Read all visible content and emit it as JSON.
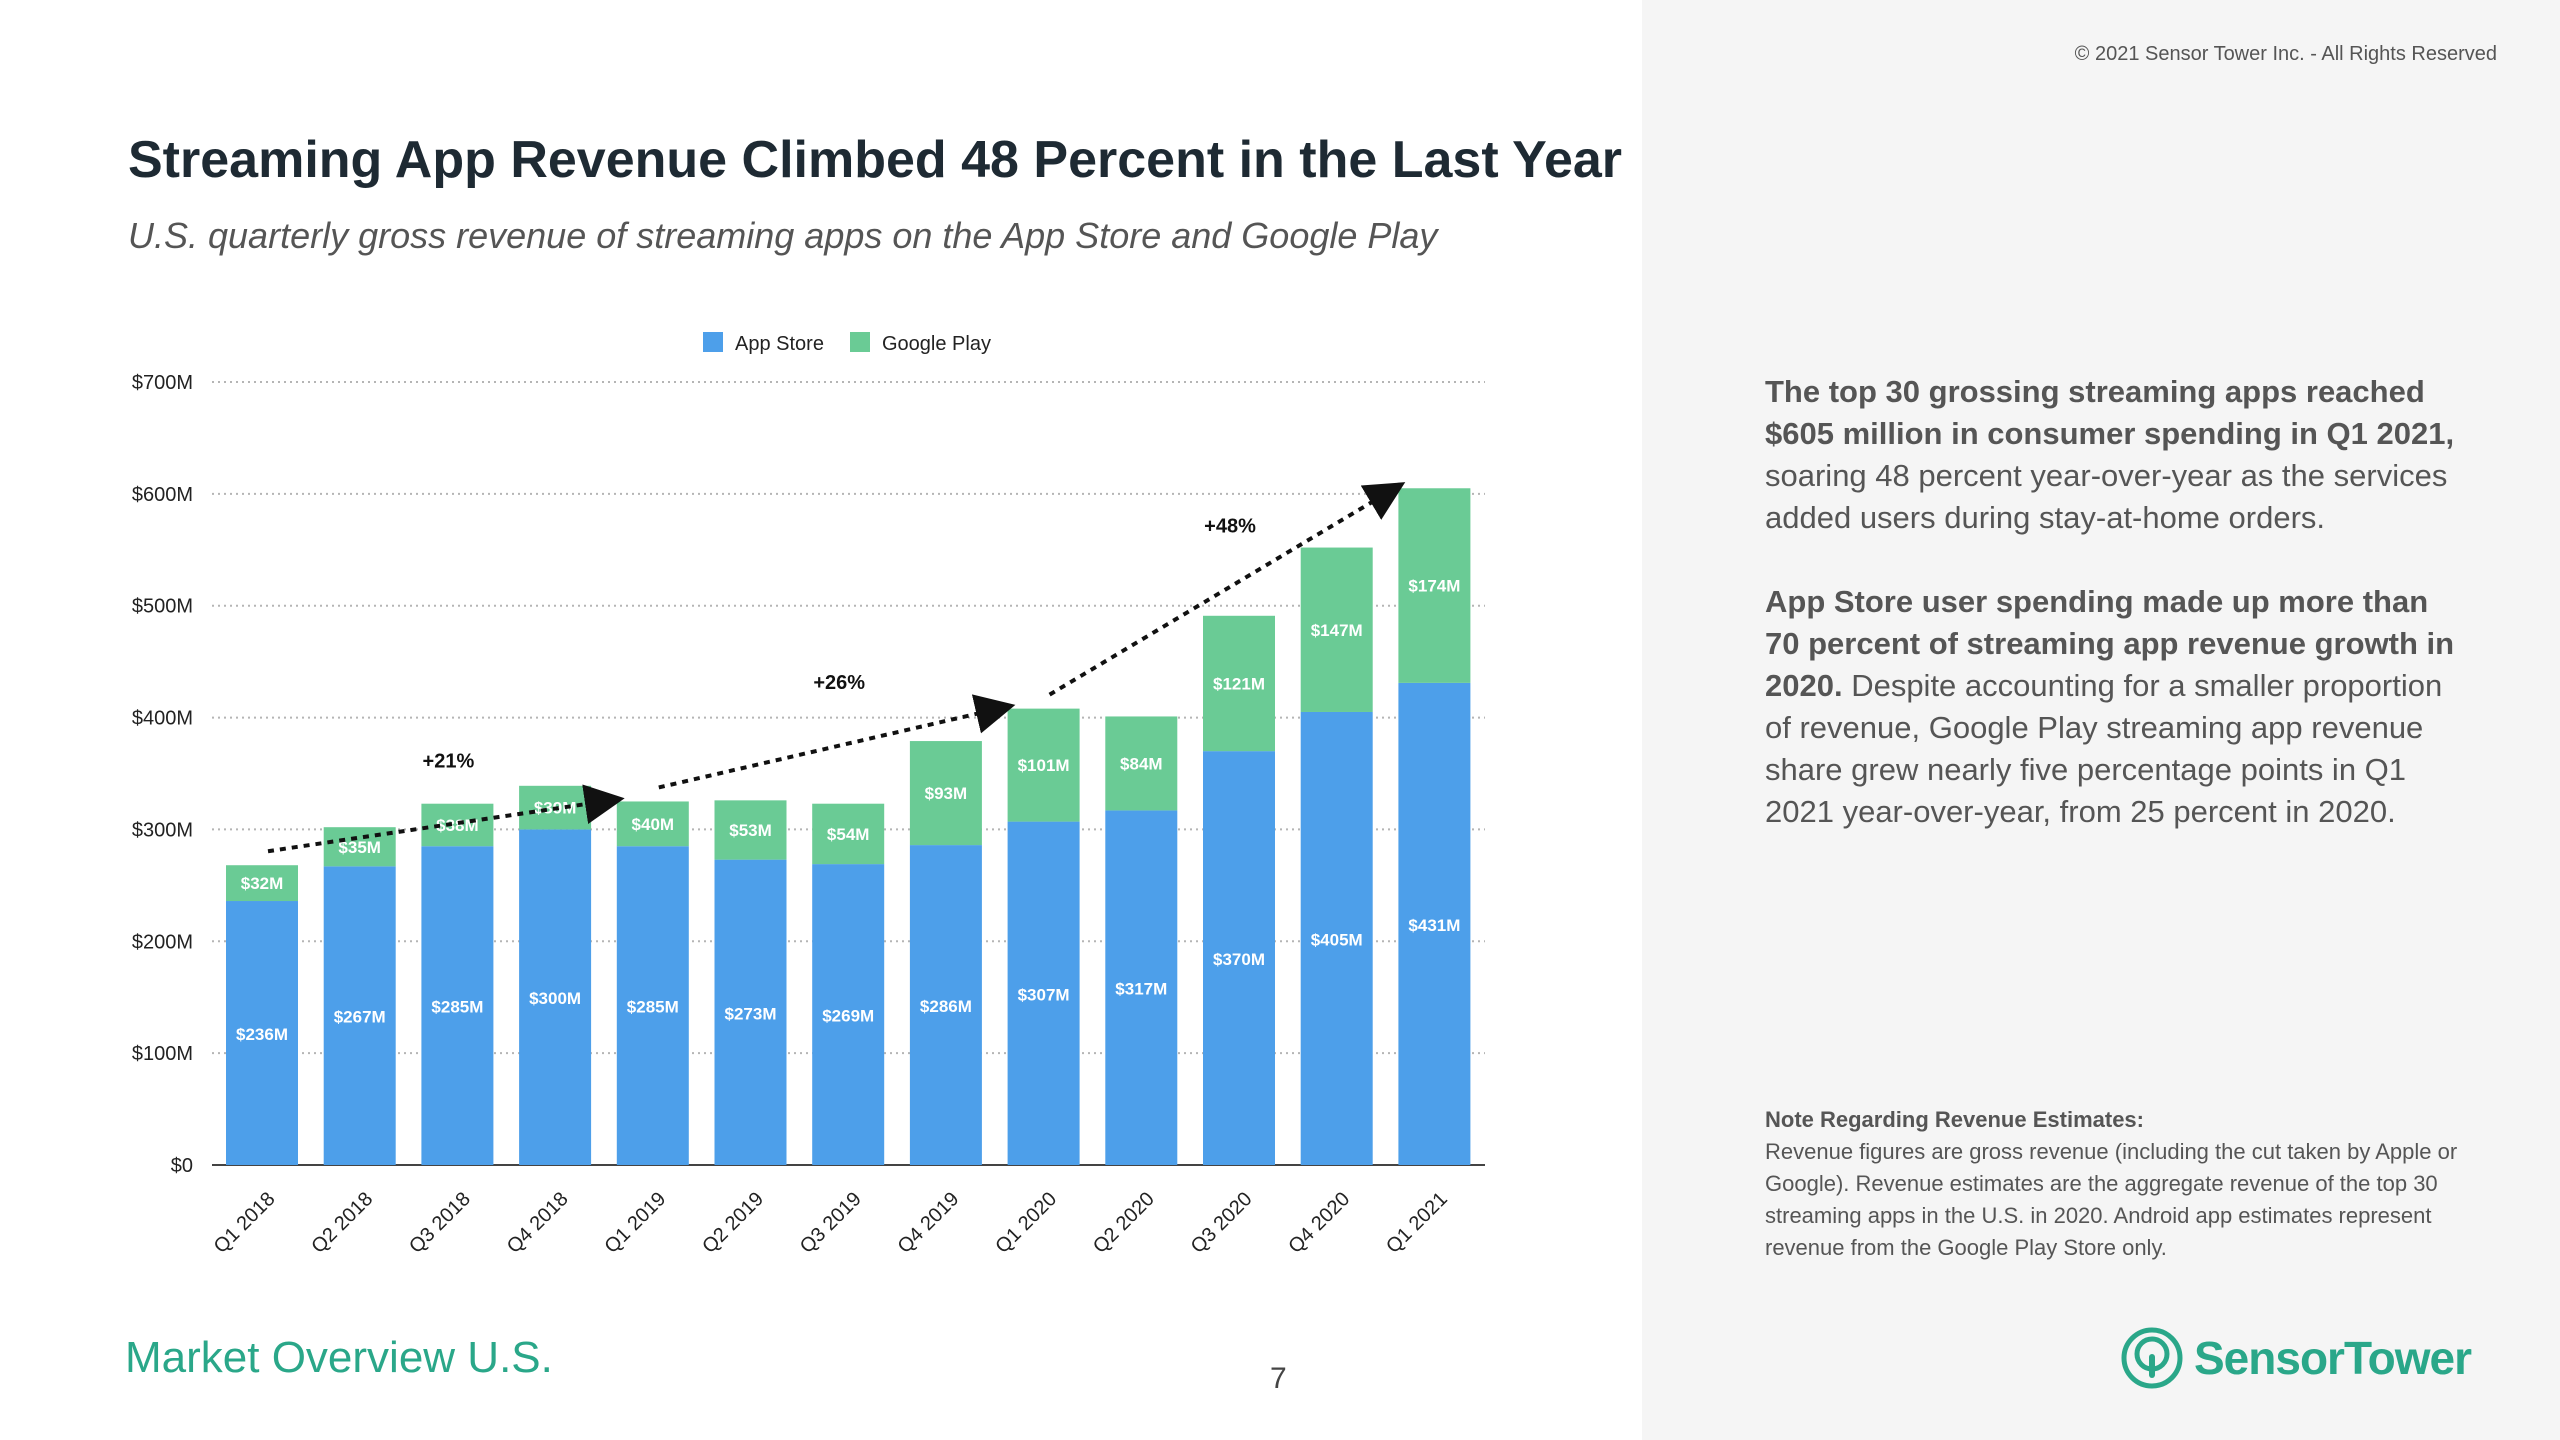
{
  "copyright": "© 2021 Sensor Tower Inc. - All Rights Reserved",
  "title": "Streaming App Revenue Climbed 48 Percent in the Last Year",
  "subtitle": "U.S. quarterly gross revenue of streaming apps on the App Store and Google Play",
  "side_text": {
    "para1_bold": "The top 30 grossing streaming apps reached $605 million in consumer spending in Q1 2021,",
    "para1_rest": " soaring 48 percent year-over-year as the services added users during stay-at-home orders.",
    "para2_bold": "App Store user spending made up more than 70 percent of streaming app revenue growth in 2020.",
    "para2_rest": " Despite accounting for a smaller proportion of revenue, Google Play streaming app revenue share grew nearly five percentage points in Q1 2021 year-over-year, from 25 percent in 2020."
  },
  "note": {
    "title": "Note Regarding Revenue Estimates:",
    "body": "Revenue figures are gross revenue (including the cut taken by Apple or Google). Revenue estimates are the aggregate revenue of the top 30 streaming apps in the U.S. in 2020. Android app estimates represent revenue from the Google Play Store only."
  },
  "footer": {
    "section": "Market Overview U.S.",
    "page_number": "7",
    "brand": "SensorTower"
  },
  "colors": {
    "app_store": "#4d9fea",
    "google_play": "#6acb95",
    "brand": "#2aa789"
  },
  "chart_data": {
    "type": "bar",
    "stacked": true,
    "categories": [
      "Q1 2018",
      "Q2 2018",
      "Q3 2018",
      "Q4 2018",
      "Q1 2019",
      "Q2 2019",
      "Q3 2019",
      "Q4 2019",
      "Q1 2020",
      "Q2 2020",
      "Q3 2020",
      "Q4 2020",
      "Q1 2021"
    ],
    "series": [
      {
        "name": "App Store",
        "color": "#4d9fea",
        "values": [
          236,
          267,
          285,
          300,
          285,
          273,
          269,
          286,
          307,
          317,
          370,
          405,
          431
        ],
        "labels": [
          "$236M",
          "$267M",
          "$285M",
          "$300M",
          "$285M",
          "$273M",
          "$269M",
          "$286M",
          "$307M",
          "$317M",
          "$370M",
          "$405M",
          "$431M"
        ]
      },
      {
        "name": "Google Play",
        "color": "#6acb95",
        "values": [
          32,
          35,
          38,
          39,
          40,
          53,
          54,
          93,
          101,
          84,
          121,
          147,
          174
        ],
        "labels": [
          "$32M",
          "$35M",
          "$38M",
          "$39M",
          "$40M",
          "$53M",
          "$54M",
          "$93M",
          "$101M",
          "$84M",
          "$121M",
          "$147M",
          "$174M"
        ]
      }
    ],
    "yticks": [
      0,
      100,
      200,
      300,
      400,
      500,
      600,
      700
    ],
    "ytick_labels": [
      "$0",
      "$100M",
      "$200M",
      "$300M",
      "$400M",
      "$500M",
      "$600M",
      "$700M"
    ],
    "ylim": [
      0,
      700
    ],
    "grid": true,
    "legend": "top-center",
    "growth_annotations": [
      {
        "label": "+21%",
        "from": "Q1 2018",
        "to": "Q1 2019"
      },
      {
        "label": "+26%",
        "from": "Q1 2019",
        "to": "Q1 2020"
      },
      {
        "label": "+48%",
        "from": "Q1 2020",
        "to": "Q1 2021"
      }
    ]
  }
}
